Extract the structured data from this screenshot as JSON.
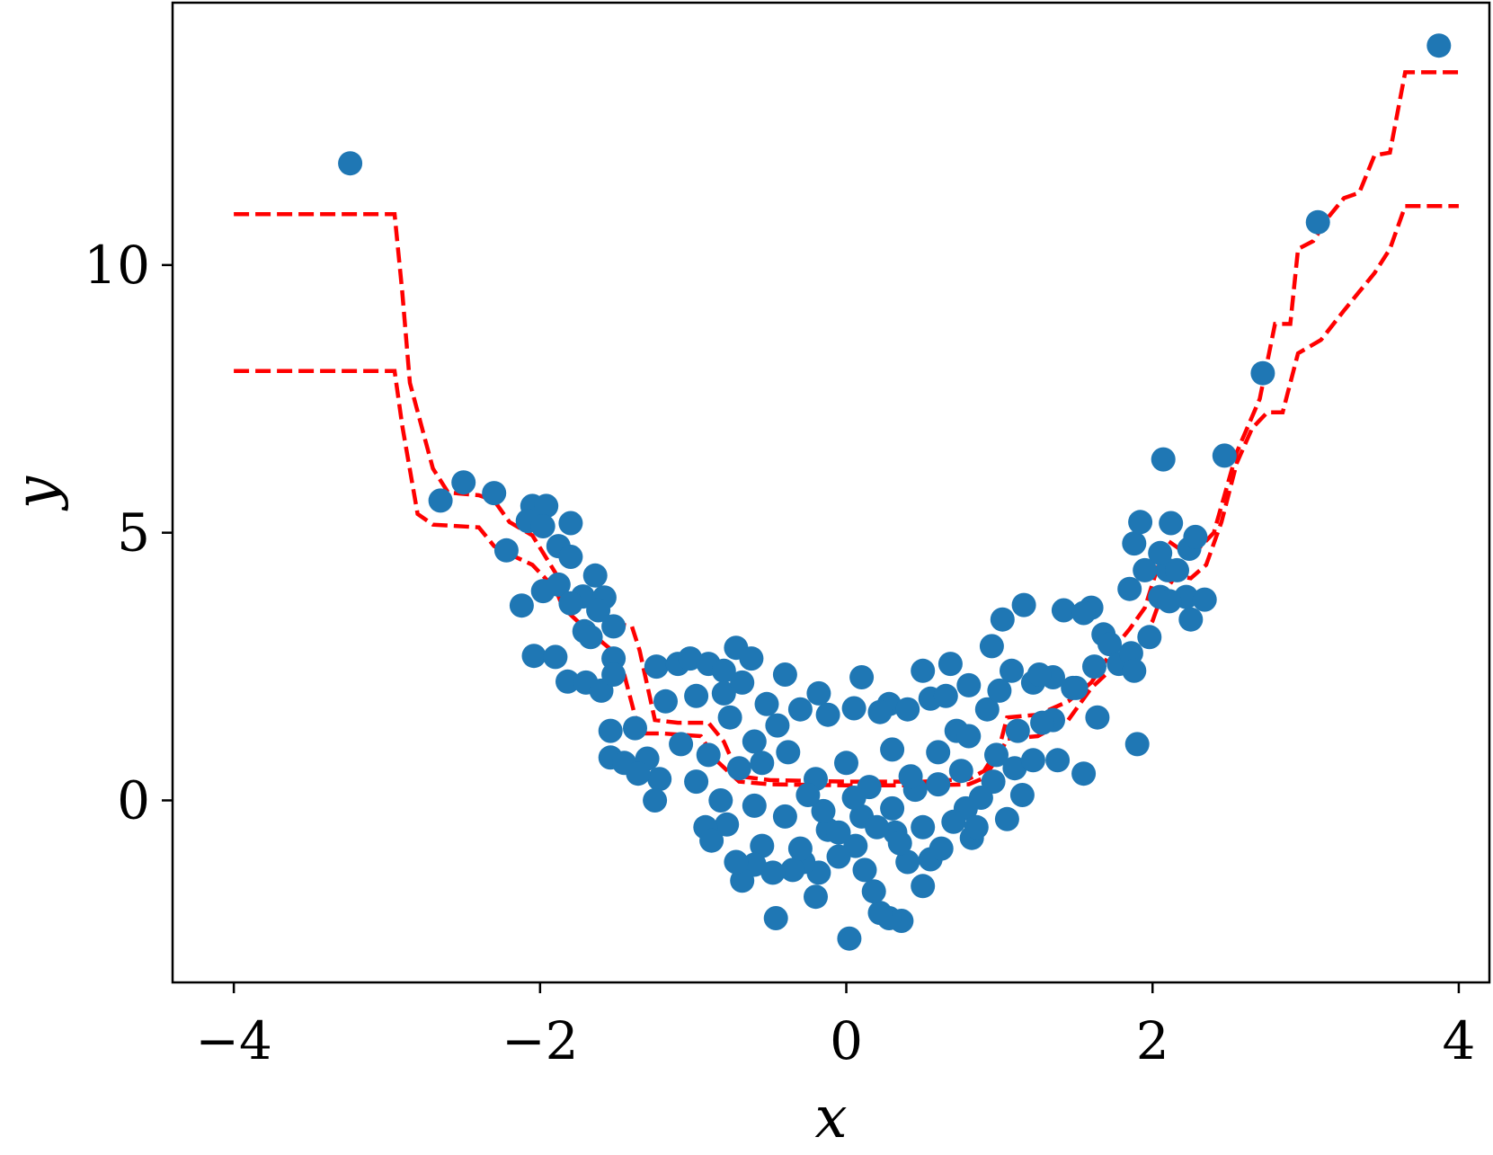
{
  "chart_data": {
    "type": "scatter",
    "title": "",
    "xlabel": "x",
    "ylabel": "y",
    "xlim": [
      -4.4,
      4.2
    ],
    "ylim": [
      -3.4,
      14.9
    ],
    "xticks": [
      -4,
      -2,
      0,
      2,
      4
    ],
    "xtick_labels": [
      "−4",
      "−2",
      "0",
      "2",
      "4"
    ],
    "yticks": [
      0,
      5,
      10
    ],
    "ytick_labels": [
      "0",
      "5",
      "10"
    ],
    "grid": false,
    "legend": "none",
    "colors": {
      "points": "#1f77b4",
      "bands": "#ff0000"
    },
    "series": [
      {
        "kind": "scatter",
        "points": [
          [
            -3.24,
            11.9
          ],
          [
            3.87,
            14.1
          ],
          [
            3.08,
            10.8
          ],
          [
            2.72,
            7.98
          ],
          [
            2.47,
            6.44
          ],
          [
            2.07,
            6.37
          ],
          [
            -2.65,
            5.6
          ],
          [
            -2.5,
            5.94
          ],
          [
            -2.3,
            5.74
          ],
          [
            -2.05,
            5.5
          ],
          [
            -1.96,
            5.5
          ],
          [
            -2.08,
            5.22
          ],
          [
            -1.98,
            5.12
          ],
          [
            -1.8,
            5.18
          ],
          [
            -2.22,
            4.67
          ],
          [
            -1.88,
            4.75
          ],
          [
            -1.8,
            4.55
          ],
          [
            -1.64,
            4.2
          ],
          [
            -1.88,
            4.03
          ],
          [
            -1.98,
            3.91
          ],
          [
            -2.12,
            3.64
          ],
          [
            -1.72,
            3.81
          ],
          [
            -1.58,
            3.79
          ],
          [
            -1.8,
            3.68
          ],
          [
            -1.62,
            3.55
          ],
          [
            -1.52,
            3.25
          ],
          [
            -1.71,
            3.16
          ],
          [
            -1.67,
            3.05
          ],
          [
            -1.52,
            2.65
          ],
          [
            -2.04,
            2.7
          ],
          [
            -1.9,
            2.68
          ],
          [
            -1.82,
            2.22
          ],
          [
            -1.7,
            2.2
          ],
          [
            -1.6,
            2.05
          ],
          [
            -1.52,
            2.35
          ],
          [
            -1.54,
            1.3
          ],
          [
            -1.38,
            1.35
          ],
          [
            -1.54,
            0.8
          ],
          [
            -1.45,
            0.7
          ],
          [
            -1.3,
            0.78
          ],
          [
            -1.22,
            0.4
          ],
          [
            -1.25,
            0.0
          ],
          [
            -1.24,
            2.5
          ],
          [
            -1.1,
            2.55
          ],
          [
            -1.02,
            2.65
          ],
          [
            -0.9,
            2.55
          ],
          [
            -0.8,
            2.42
          ],
          [
            -0.72,
            2.85
          ],
          [
            -0.62,
            2.65
          ],
          [
            -1.18,
            1.85
          ],
          [
            -0.98,
            1.95
          ],
          [
            -0.8,
            2.0
          ],
          [
            -0.68,
            2.2
          ],
          [
            -0.52,
            1.8
          ],
          [
            -0.4,
            2.35
          ],
          [
            -0.18,
            2.0
          ],
          [
            0.1,
            2.3
          ],
          [
            0.28,
            1.8
          ],
          [
            0.5,
            2.42
          ],
          [
            0.68,
            2.55
          ],
          [
            0.8,
            2.15
          ],
          [
            0.95,
            2.88
          ],
          [
            1.02,
            3.38
          ],
          [
            1.16,
            3.65
          ],
          [
            1.42,
            3.55
          ],
          [
            1.6,
            3.6
          ],
          [
            1.55,
            3.5
          ],
          [
            1.68,
            3.1
          ],
          [
            1.72,
            2.92
          ],
          [
            1.78,
            2.55
          ],
          [
            1.86,
            2.75
          ],
          [
            1.62,
            2.5
          ],
          [
            1.5,
            2.1
          ],
          [
            1.88,
            2.42
          ],
          [
            1.98,
            3.05
          ],
          [
            2.05,
            3.8
          ],
          [
            2.1,
            4.3
          ],
          [
            2.05,
            4.62
          ],
          [
            1.88,
            4.8
          ],
          [
            1.92,
            5.2
          ],
          [
            2.12,
            5.18
          ],
          [
            2.24,
            4.7
          ],
          [
            2.28,
            4.92
          ],
          [
            2.16,
            4.3
          ],
          [
            2.22,
            3.8
          ],
          [
            2.34,
            3.75
          ],
          [
            2.25,
            3.38
          ],
          [
            2.11,
            3.72
          ],
          [
            1.95,
            4.3
          ],
          [
            1.85,
            3.95
          ],
          [
            1.9,
            1.05
          ],
          [
            1.35,
            1.5
          ],
          [
            1.64,
            1.55
          ],
          [
            1.55,
            0.5
          ],
          [
            1.38,
            0.75
          ],
          [
            1.28,
            1.45
          ],
          [
            1.12,
            1.3
          ],
          [
            1.05,
            -0.35
          ],
          [
            1.15,
            0.1
          ],
          [
            0.96,
            0.35
          ],
          [
            0.82,
            -0.7
          ],
          [
            0.78,
            -0.15
          ],
          [
            0.6,
            0.3
          ],
          [
            0.55,
            -1.1
          ],
          [
            0.5,
            -1.6
          ],
          [
            0.4,
            -1.15
          ],
          [
            0.32,
            -0.6
          ],
          [
            0.36,
            -2.25
          ],
          [
            0.28,
            -2.2
          ],
          [
            0.22,
            -2.1
          ],
          [
            0.18,
            -1.7
          ],
          [
            0.12,
            -1.3
          ],
          [
            0.06,
            -0.85
          ],
          [
            0.02,
            -2.58
          ],
          [
            -0.05,
            -1.05
          ],
          [
            -0.12,
            -0.55
          ],
          [
            -0.18,
            -1.35
          ],
          [
            -0.2,
            -1.8
          ],
          [
            -0.28,
            -1.15
          ],
          [
            -0.35,
            -1.3
          ],
          [
            -0.46,
            -2.2
          ],
          [
            -0.48,
            -1.35
          ],
          [
            -0.55,
            -0.85
          ],
          [
            -0.6,
            -1.2
          ],
          [
            -0.68,
            -1.5
          ],
          [
            -0.72,
            -1.15
          ],
          [
            -0.78,
            -0.45
          ],
          [
            -0.82,
            0.0
          ],
          [
            -0.92,
            -0.5
          ],
          [
            -0.88,
            -0.75
          ],
          [
            -0.7,
            0.6
          ],
          [
            -0.6,
            1.1
          ],
          [
            -0.45,
            1.4
          ],
          [
            -0.3,
            1.7
          ],
          [
            -0.12,
            1.6
          ],
          [
            0.05,
            1.72
          ],
          [
            0.22,
            1.65
          ],
          [
            0.4,
            1.7
          ],
          [
            0.55,
            1.9
          ],
          [
            0.65,
            1.95
          ],
          [
            0.72,
            1.3
          ],
          [
            0.8,
            1.2
          ],
          [
            0.92,
            1.7
          ],
          [
            1.0,
            2.05
          ],
          [
            1.08,
            2.42
          ],
          [
            1.22,
            2.2
          ],
          [
            1.35,
            2.3
          ],
          [
            1.48,
            2.1
          ],
          [
            1.26,
            2.35
          ],
          [
            -1.36,
            0.5
          ],
          [
            -1.08,
            1.05
          ],
          [
            -0.9,
            0.85
          ],
          [
            -0.98,
            0.35
          ],
          [
            -0.76,
            1.55
          ],
          [
            -0.55,
            0.7
          ],
          [
            -0.38,
            0.9
          ],
          [
            -0.2,
            0.4
          ],
          [
            0.0,
            0.7
          ],
          [
            0.15,
            0.25
          ],
          [
            0.3,
            0.95
          ],
          [
            0.45,
            0.2
          ],
          [
            0.6,
            0.9
          ],
          [
            0.75,
            0.55
          ],
          [
            0.88,
            0.05
          ],
          [
            0.98,
            0.85
          ],
          [
            1.1,
            0.6
          ],
          [
            1.22,
            0.75
          ],
          [
            -0.15,
            -0.2
          ],
          [
            0.1,
            -0.3
          ],
          [
            0.3,
            -0.15
          ],
          [
            0.5,
            -0.5
          ],
          [
            0.7,
            -0.4
          ],
          [
            -0.4,
            -0.3
          ],
          [
            -0.6,
            -0.1
          ],
          [
            -0.25,
            0.1
          ],
          [
            0.05,
            0.05
          ],
          [
            0.35,
            -0.8
          ],
          [
            0.62,
            -0.9
          ],
          [
            -0.3,
            -0.9
          ],
          [
            0.2,
            -0.5
          ],
          [
            -0.05,
            -0.6
          ],
          [
            0.42,
            0.45
          ],
          [
            0.85,
            -0.5
          ]
        ]
      },
      {
        "kind": "line",
        "style": "dashed",
        "points": [
          [
            -4,
            10.95
          ],
          [
            -2.95,
            10.95
          ],
          [
            -2.9,
            9.5
          ],
          [
            -2.85,
            7.8
          ],
          [
            -2.7,
            6.2
          ],
          [
            -2.6,
            5.75
          ],
          [
            -2.4,
            5.7
          ],
          [
            -2.3,
            5.6
          ],
          [
            -2.2,
            5.2
          ],
          [
            -2.05,
            4.95
          ],
          [
            -1.9,
            4.25
          ],
          [
            -1.85,
            3.9
          ],
          [
            -1.75,
            3.8
          ],
          [
            -1.6,
            3.55
          ],
          [
            -1.5,
            3.3
          ],
          [
            -1.4,
            3.25
          ],
          [
            -1.35,
            2.8
          ],
          [
            -1.25,
            1.5
          ],
          [
            -1.1,
            1.45
          ],
          [
            -0.9,
            1.45
          ],
          [
            -0.8,
            1.1
          ],
          [
            -0.7,
            0.45
          ],
          [
            -0.5,
            0.38
          ],
          [
            0.0,
            0.35
          ],
          [
            0.5,
            0.35
          ],
          [
            0.8,
            0.4
          ],
          [
            0.9,
            0.55
          ],
          [
            1.0,
            1.0
          ],
          [
            1.05,
            1.55
          ],
          [
            1.25,
            1.6
          ],
          [
            1.45,
            1.85
          ],
          [
            1.6,
            2.2
          ],
          [
            1.75,
            2.85
          ],
          [
            1.85,
            3.2
          ],
          [
            1.95,
            3.6
          ],
          [
            2.0,
            4.05
          ],
          [
            2.05,
            4.5
          ],
          [
            2.1,
            4.85
          ],
          [
            2.2,
            4.65
          ],
          [
            2.3,
            4.7
          ],
          [
            2.4,
            5.0
          ],
          [
            2.55,
            6.5
          ],
          [
            2.7,
            7.5
          ],
          [
            2.8,
            8.9
          ],
          [
            2.9,
            8.9
          ],
          [
            2.95,
            10.3
          ],
          [
            3.05,
            10.45
          ],
          [
            3.15,
            10.9
          ],
          [
            3.25,
            11.25
          ],
          [
            3.35,
            11.35
          ],
          [
            3.45,
            12.05
          ],
          [
            3.55,
            12.1
          ],
          [
            3.65,
            13.6
          ],
          [
            4,
            13.6
          ]
        ]
      },
      {
        "kind": "line",
        "style": "dashed",
        "points": [
          [
            -4,
            8.02
          ],
          [
            -2.95,
            8.02
          ],
          [
            -2.9,
            7.0
          ],
          [
            -2.8,
            5.35
          ],
          [
            -2.7,
            5.15
          ],
          [
            -2.4,
            5.1
          ],
          [
            -2.3,
            4.75
          ],
          [
            -2.2,
            4.6
          ],
          [
            -2.05,
            4.4
          ],
          [
            -1.9,
            3.95
          ],
          [
            -1.85,
            3.6
          ],
          [
            -1.7,
            3.2
          ],
          [
            -1.55,
            2.85
          ],
          [
            -1.45,
            2.35
          ],
          [
            -1.35,
            1.25
          ],
          [
            -1.2,
            1.25
          ],
          [
            -0.95,
            1.2
          ],
          [
            -0.85,
            0.75
          ],
          [
            -0.7,
            0.35
          ],
          [
            -0.5,
            0.3
          ],
          [
            0.0,
            0.28
          ],
          [
            0.5,
            0.28
          ],
          [
            0.8,
            0.3
          ],
          [
            0.9,
            0.42
          ],
          [
            1.0,
            0.85
          ],
          [
            1.05,
            1.15
          ],
          [
            1.25,
            1.2
          ],
          [
            1.45,
            1.5
          ],
          [
            1.6,
            2.1
          ],
          [
            1.75,
            2.5
          ],
          [
            1.9,
            2.9
          ],
          [
            2.0,
            3.35
          ],
          [
            2.05,
            3.75
          ],
          [
            2.15,
            4.2
          ],
          [
            2.25,
            4.15
          ],
          [
            2.35,
            4.4
          ],
          [
            2.45,
            5.2
          ],
          [
            2.55,
            6.3
          ],
          [
            2.65,
            6.95
          ],
          [
            2.75,
            7.25
          ],
          [
            2.85,
            7.25
          ],
          [
            2.95,
            8.35
          ],
          [
            3.1,
            8.6
          ],
          [
            3.25,
            9.15
          ],
          [
            3.35,
            9.5
          ],
          [
            3.45,
            9.85
          ],
          [
            3.55,
            10.3
          ],
          [
            3.65,
            11.1
          ],
          [
            4,
            11.1
          ]
        ]
      }
    ]
  }
}
